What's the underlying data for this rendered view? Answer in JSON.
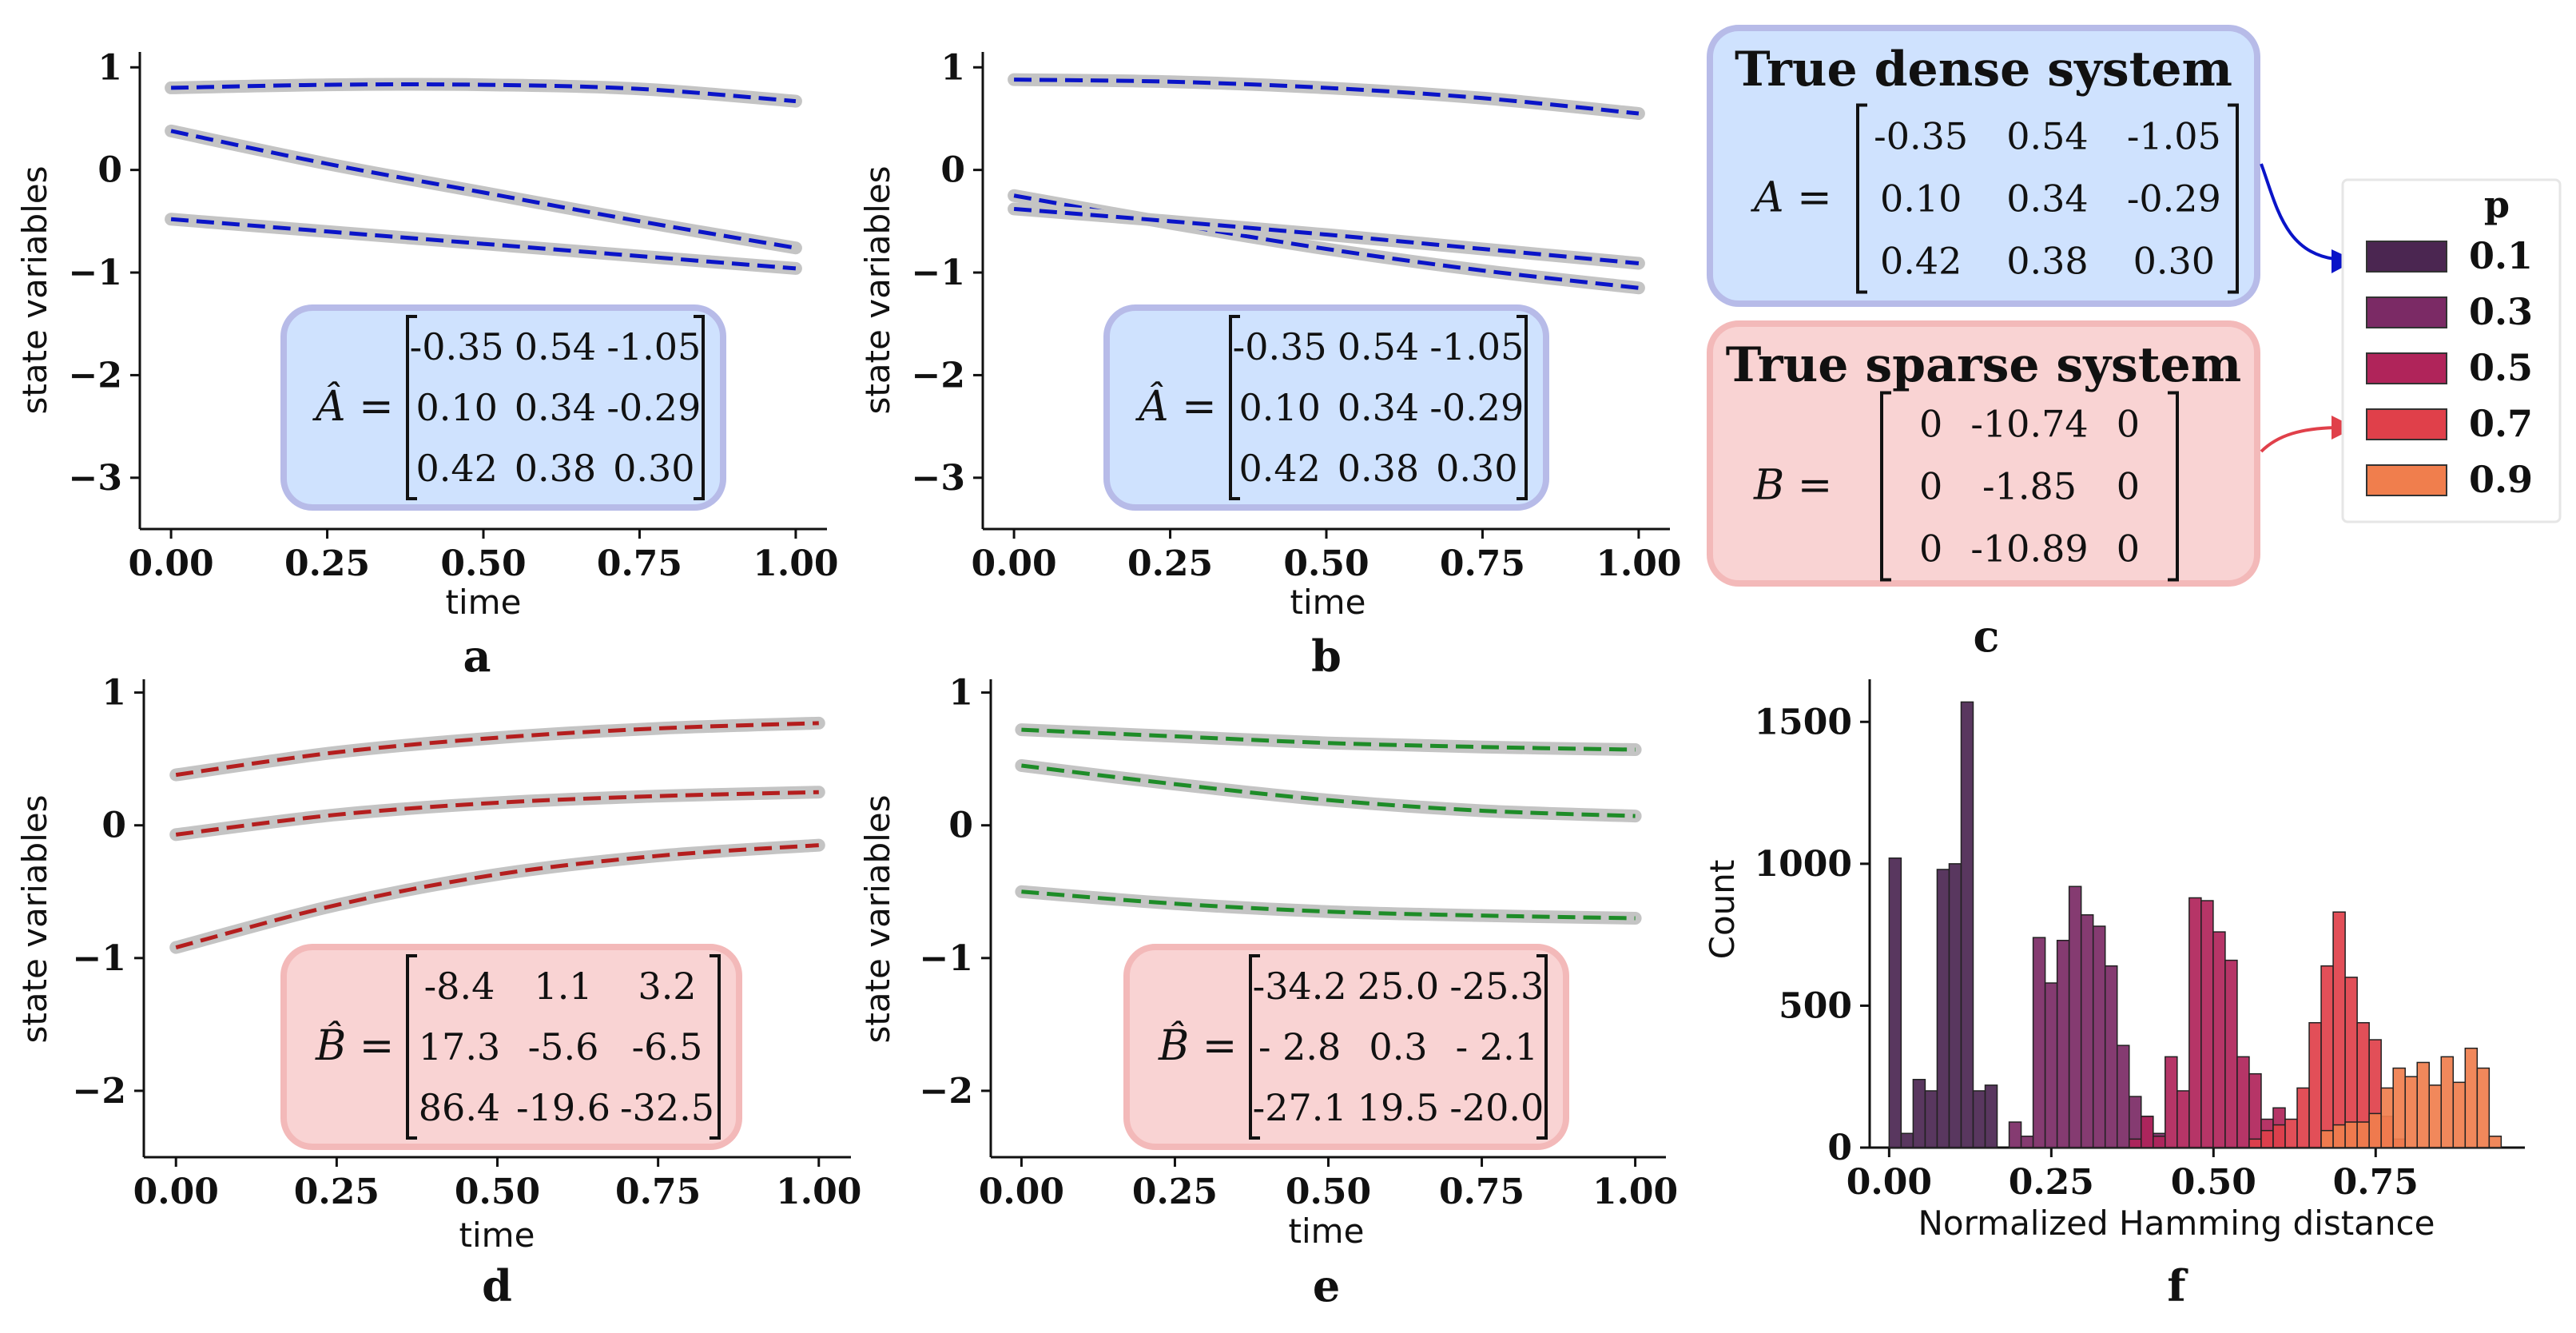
{
  "chart_data": [
    {
      "id": "a",
      "type": "line",
      "panel_label": "a",
      "xlabel": "time",
      "ylabel": "state variables",
      "xlim": [
        -0.05,
        1.05
      ],
      "ylim": [
        -3.5,
        1.15
      ],
      "xticks": [
        "0.00",
        "0.25",
        "0.50",
        "0.75",
        "1.00"
      ],
      "yticks": [
        "1",
        "0",
        "−1",
        "−2",
        "−3"
      ],
      "line_color": "#0a14c8",
      "x": [
        0,
        0.25,
        0.5,
        0.75,
        1.0
      ],
      "series": [
        {
          "values": [
            0.8,
            0.83,
            0.83,
            0.79,
            0.67
          ]
        },
        {
          "values": [
            0.38,
            0.06,
            -0.22,
            -0.5,
            -0.76
          ]
        },
        {
          "values": [
            -0.48,
            -0.6,
            -0.72,
            -0.84,
            -0.96
          ]
        }
      ],
      "matrix_box": {
        "label": "Â =",
        "bg": "#cfe2fe",
        "border": "#b7bbe8",
        "rows": [
          [
            "-0.35",
            "0.54",
            "-1.05"
          ],
          [
            "0.10",
            "0.34",
            "-0.29"
          ],
          [
            "0.42",
            "0.38",
            "0.30"
          ]
        ]
      }
    },
    {
      "id": "b",
      "type": "line",
      "panel_label": "b",
      "xlabel": "time",
      "ylabel": "state variables",
      "xlim": [
        -0.05,
        1.05
      ],
      "ylim": [
        -3.5,
        1.15
      ],
      "xticks": [
        "0.00",
        "0.25",
        "0.50",
        "0.75",
        "1.00"
      ],
      "yticks": [
        "1",
        "0",
        "−1",
        "−2",
        "−3"
      ],
      "line_color": "#0a14c8",
      "x": [
        0,
        0.25,
        0.5,
        0.75,
        1.0
      ],
      "series": [
        {
          "values": [
            0.88,
            0.86,
            0.8,
            0.7,
            0.55
          ]
        },
        {
          "values": [
            -0.25,
            -0.52,
            -0.77,
            -0.98,
            -1.15
          ]
        },
        {
          "values": [
            -0.38,
            -0.5,
            -0.63,
            -0.77,
            -0.91
          ]
        }
      ],
      "matrix_box": {
        "label": "Â =",
        "bg": "#cfe2fe",
        "border": "#b7bbe8",
        "rows": [
          [
            "-0.35",
            "0.54",
            "-1.05"
          ],
          [
            "0.10",
            "0.34",
            "-0.29"
          ],
          [
            "0.42",
            "0.38",
            "0.30"
          ]
        ]
      }
    },
    {
      "id": "d",
      "type": "line",
      "panel_label": "d",
      "xlabel": "time",
      "ylabel": "state variables",
      "xlim": [
        -0.05,
        1.05
      ],
      "ylim": [
        -2.5,
        1.1
      ],
      "xticks": [
        "0.00",
        "0.25",
        "0.50",
        "0.75",
        "1.00"
      ],
      "yticks": [
        "1",
        "0",
        "−1",
        "−2"
      ],
      "line_color": "#b41e1e",
      "x": [
        0,
        0.25,
        0.5,
        0.75,
        1.0
      ],
      "series": [
        {
          "values": [
            0.38,
            0.55,
            0.66,
            0.73,
            0.77
          ]
        },
        {
          "values": [
            -0.07,
            0.08,
            0.17,
            0.22,
            0.25
          ]
        },
        {
          "values": [
            -0.92,
            -0.6,
            -0.37,
            -0.23,
            -0.15
          ]
        }
      ],
      "matrix_box": {
        "label": "B̂ =",
        "bg": "#f9d3d3",
        "border": "#f3b9b9",
        "rows": [
          [
            "-8.4",
            "1.1",
            "3.2"
          ],
          [
            "17.3",
            "-5.6",
            "-6.5"
          ],
          [
            "86.4",
            "-19.6",
            "-32.5"
          ]
        ]
      }
    },
    {
      "id": "e",
      "type": "line",
      "panel_label": "e",
      "xlabel": "time",
      "ylabel": "state variables",
      "xlim": [
        -0.05,
        1.05
      ],
      "ylim": [
        -2.5,
        1.1
      ],
      "xticks": [
        "0.00",
        "0.25",
        "0.50",
        "0.75",
        "1.00"
      ],
      "yticks": [
        "1",
        "0",
        "−1",
        "−2"
      ],
      "line_color": "#1e8c28",
      "x": [
        0,
        0.25,
        0.5,
        0.75,
        1.0
      ],
      "series": [
        {
          "values": [
            0.72,
            0.67,
            0.62,
            0.59,
            0.57
          ]
        },
        {
          "values": [
            0.45,
            0.31,
            0.19,
            0.11,
            0.07
          ]
        },
        {
          "values": [
            -0.5,
            -0.59,
            -0.65,
            -0.68,
            -0.7
          ]
        }
      ],
      "matrix_box": {
        "label": "B̂ =",
        "bg": "#f9d3d3",
        "border": "#f3b9b9",
        "rows": [
          [
            "-34.2",
            "25.0",
            "-25.3"
          ],
          [
            "- 2.8",
            "0.3",
            "- 2.1"
          ],
          [
            "-27.1",
            "19.5",
            "-20.0"
          ]
        ]
      }
    },
    {
      "id": "f",
      "type": "bar",
      "panel_label": "f",
      "xlabel": "Normalized Hamming distance",
      "ylabel": "Count",
      "xlim": [
        -0.03,
        0.98
      ],
      "ylim": [
        0,
        1650
      ],
      "xticks": [
        {
          "value": 0.0,
          "label": "0.00"
        },
        {
          "value": 0.25,
          "label": "0.25"
        },
        {
          "value": 0.5,
          "label": "0.50"
        },
        {
          "value": 0.75,
          "label": "0.75"
        }
      ],
      "yticks": [
        {
          "value": 0,
          "label": "0"
        },
        {
          "value": 500,
          "label": "500"
        },
        {
          "value": 1000,
          "label": "1000"
        },
        {
          "value": 1500,
          "label": "1500"
        }
      ],
      "bin_width": 0.0185,
      "series": [
        {
          "name": "0.1",
          "color": "#4b2651",
          "bins": [
            [
              0.0,
              1020
            ],
            [
              0.0185,
              50
            ],
            [
              0.037,
              240
            ],
            [
              0.0555,
              200
            ],
            [
              0.074,
              980
            ],
            [
              0.0925,
              1000
            ],
            [
              0.111,
              1570
            ],
            [
              0.1295,
              200
            ],
            [
              0.148,
              220
            ]
          ]
        },
        {
          "name": "0.3",
          "color": "#7b2a65",
          "bins": [
            [
              0.185,
              90
            ],
            [
              0.2035,
              40
            ],
            [
              0.222,
              740
            ],
            [
              0.2405,
              580
            ],
            [
              0.259,
              730
            ],
            [
              0.2775,
              920
            ],
            [
              0.296,
              820
            ],
            [
              0.3145,
              780
            ],
            [
              0.333,
              640
            ],
            [
              0.3515,
              360
            ],
            [
              0.37,
              180
            ],
            [
              0.3885,
              110
            ],
            [
              0.407,
              50
            ]
          ]
        },
        {
          "name": "0.5",
          "color": "#b0245a",
          "bins": [
            [
              0.37,
              30
            ],
            [
              0.3885,
              110
            ],
            [
              0.407,
              40
            ],
            [
              0.4255,
              320
            ],
            [
              0.444,
              200
            ],
            [
              0.4625,
              880
            ],
            [
              0.481,
              870
            ],
            [
              0.4995,
              760
            ],
            [
              0.518,
              660
            ],
            [
              0.5365,
              320
            ],
            [
              0.555,
              260
            ],
            [
              0.5735,
              100
            ],
            [
              0.592,
              140
            ]
          ]
        },
        {
          "name": "0.7",
          "color": "#e0404a",
          "bins": [
            [
              0.555,
              30
            ],
            [
              0.5735,
              60
            ],
            [
              0.592,
              80
            ],
            [
              0.6105,
              100
            ],
            [
              0.629,
              210
            ],
            [
              0.6475,
              440
            ],
            [
              0.666,
              640
            ],
            [
              0.6845,
              830
            ],
            [
              0.703,
              600
            ],
            [
              0.7215,
              440
            ],
            [
              0.74,
              380
            ],
            [
              0.7585,
              110
            ],
            [
              0.777,
              30
            ]
          ]
        },
        {
          "name": "0.9",
          "color": "#f07e4d",
          "bins": [
            [
              0.666,
              60
            ],
            [
              0.6845,
              80
            ],
            [
              0.703,
              90
            ],
            [
              0.7215,
              90
            ],
            [
              0.74,
              120
            ],
            [
              0.7585,
              210
            ],
            [
              0.777,
              280
            ],
            [
              0.7955,
              250
            ],
            [
              0.814,
              300
            ],
            [
              0.8325,
              220
            ],
            [
              0.851,
              320
            ],
            [
              0.8695,
              230
            ],
            [
              0.888,
              350
            ],
            [
              0.9065,
              280
            ],
            [
              0.925,
              40
            ]
          ]
        }
      ]
    }
  ],
  "panel_c": {
    "label": "c",
    "dense_box": {
      "title": "True dense system",
      "label": "A =",
      "bg": "#cfe2fe",
      "border": "#b7bbe8",
      "rows": [
        [
          "-0.35",
          "0.54",
          "-1.05"
        ],
        [
          "0.10",
          "0.34",
          "-0.29"
        ],
        [
          "0.42",
          "0.38",
          "0.30"
        ]
      ]
    },
    "sparse_box": {
      "title": "True sparse system",
      "label": "B =",
      "bg": "#f9d3d3",
      "border": "#f3b9b9",
      "rows": [
        [
          "0",
          "-10.74",
          "0"
        ],
        [
          "0",
          "-1.85",
          "0"
        ],
        [
          "0",
          "-10.89",
          "0"
        ]
      ]
    },
    "arrow_dense_color": "#0a14c8",
    "arrow_sparse_color": "#e0404a"
  },
  "legend": {
    "title": "p",
    "items": [
      {
        "label": "0.1",
        "color": "#4b2651"
      },
      {
        "label": "0.3",
        "color": "#7b2a65"
      },
      {
        "label": "0.5",
        "color": "#b0245a"
      },
      {
        "label": "0.7",
        "color": "#e0404a"
      },
      {
        "label": "0.9",
        "color": "#f07e4d"
      }
    ]
  }
}
